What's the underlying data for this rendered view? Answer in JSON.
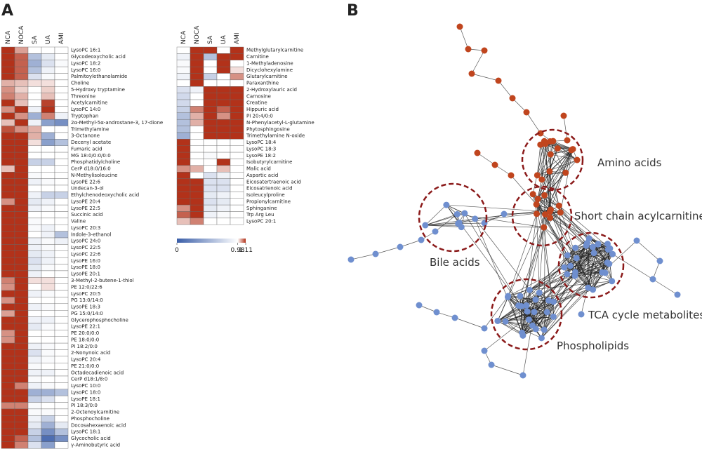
{
  "panel_labels": [
    "A",
    "B"
  ],
  "colorbar": {
    "lim": [
      0,
      1.11
    ],
    "ticks": [
      0,
      0.98,
      1.11
    ],
    "colors": [
      "#3a5ea8",
      "#ffffff",
      "#b2321a"
    ]
  },
  "chart_data": [
    {
      "type": "heatmap",
      "x": [
        "NCA",
        "NOCA",
        "SA",
        "UA",
        "AMI"
      ],
      "y": [
        "LysoPC 16:1",
        "Glycodeoxycholic acid",
        "LysoPC 18:2",
        "LysoPC 16:0",
        "Palmitoylethanolamide",
        "Choline",
        "5-Hydroxy tryptamine",
        "Threonine",
        "Acetylcarnitine",
        "LysoPC 14:0",
        "Tryptophan",
        "2α-Methyl-5α-androstane-3, 17-dione",
        "Trimethylamine",
        "3-Octanone",
        "Decenyl acetate",
        "Fumaric acid",
        "MG 18:0/0:0/0:0",
        "Phosphatidylcholine",
        "CerP d18:0/16:0",
        "N-Methylisoleucine",
        "LysoPE 22:6",
        "Undecan-3-ol",
        "Ethylchenodeoxycholic acid",
        "LysoPE 20:4",
        "LysoPE 22:5",
        "Succinic acid",
        "Valine",
        "LysoPC 20:3",
        "Indole-3-ethanol",
        "LysoPC 24:0",
        "LysoPC 22:5",
        "LysoPC 22:6",
        "LysoPE 16:0",
        "LysoPE 18:0",
        "LysoPE 20:1",
        "3-Methyl-2-butene-1-thiol",
        "PE 12:0/22:6",
        "LysoPC 20:5",
        "PG 13:0/14:0",
        "LysoPE 18:3",
        "PG 15:0/14:0",
        "Glycerophosphocholine",
        "LysoPE 22:1",
        "PE 20:0/0:0",
        "PE 18:0/0:0",
        "PI 18:2/0:0",
        "2-Nonynoic acid",
        "LysoPC 20:4",
        "PE 21:0/0:0",
        "Octadecadienoic acid",
        "CerP d18:1/8:0",
        "LysoPC 10:0",
        "LysoPC 18:0",
        "LysoPE 18:1",
        "PI 18:3/0:0",
        "2-Octenoylcarnitine",
        "Phosphocholine",
        "Docosahexaenoic acid",
        "LysoPC 18:1",
        "Glycocholic acid",
        "γ-Aminobutyric acid"
      ],
      "values": [
        [
          1.11,
          1.04,
          0.98,
          0.98,
          0.98
        ],
        [
          1.11,
          1.08,
          0.6,
          0.85,
          0.98
        ],
        [
          1.11,
          1.08,
          0.5,
          0.8,
          0.95
        ],
        [
          1.11,
          1.08,
          0.6,
          0.9,
          0.98
        ],
        [
          1.11,
          1.08,
          0.8,
          0.95,
          0.98
        ],
        [
          1.03,
          1.02,
          1.0,
          1.0,
          0.98
        ],
        [
          1.05,
          1.01,
          0.98,
          1.01,
          0.98
        ],
        [
          1.06,
          1.03,
          0.98,
          1.02,
          0.98
        ],
        [
          1.11,
          1.02,
          0.98,
          1.1,
          0.98
        ],
        [
          1.05,
          1.11,
          0.9,
          1.11,
          0.98
        ],
        [
          1.11,
          1.05,
          0.5,
          1.06,
          0.9
        ],
        [
          1.02,
          1.11,
          0.9,
          0.4,
          0.3
        ],
        [
          1.09,
          1.05,
          1.03,
          0.98,
          0.98
        ],
        [
          1.11,
          1.11,
          1.03,
          0.5,
          0.98
        ],
        [
          1.11,
          1.11,
          1.0,
          0.4,
          0.6
        ],
        [
          1.11,
          1.11,
          0.98,
          0.98,
          0.98
        ],
        [
          1.11,
          1.11,
          0.98,
          0.98,
          0.98
        ],
        [
          1.11,
          1.11,
          0.7,
          0.7,
          0.98
        ],
        [
          1.02,
          1.11,
          0.98,
          0.98,
          0.98
        ],
        [
          1.11,
          1.11,
          0.95,
          0.98,
          0.98
        ],
        [
          1.11,
          1.11,
          0.9,
          0.95,
          0.98
        ],
        [
          1.11,
          1.11,
          0.98,
          0.98,
          0.98
        ],
        [
          1.11,
          1.11,
          0.9,
          0.7,
          0.7
        ],
        [
          1.05,
          1.11,
          0.85,
          0.9,
          0.98
        ],
        [
          1.11,
          1.11,
          0.9,
          0.95,
          0.98
        ],
        [
          1.11,
          1.11,
          0.98,
          0.98,
          0.98
        ],
        [
          1.11,
          1.11,
          0.95,
          0.98,
          0.98
        ],
        [
          1.11,
          1.11,
          0.95,
          0.9,
          0.98
        ],
        [
          1.11,
          1.11,
          0.98,
          0.9,
          0.6
        ],
        [
          1.11,
          1.11,
          0.9,
          0.95,
          0.9
        ],
        [
          1.11,
          1.11,
          0.9,
          0.95,
          0.98
        ],
        [
          1.11,
          1.11,
          0.85,
          0.9,
          0.98
        ],
        [
          1.11,
          1.11,
          0.8,
          0.9,
          0.98
        ],
        [
          1.11,
          1.11,
          0.85,
          0.95,
          0.98
        ],
        [
          1.11,
          1.11,
          0.9,
          0.98,
          0.98
        ],
        [
          1.06,
          1.11,
          1.0,
          1.0,
          0.98
        ],
        [
          1.05,
          1.11,
          0.98,
          1.0,
          0.98
        ],
        [
          1.11,
          1.11,
          0.9,
          0.95,
          0.98
        ],
        [
          1.05,
          1.11,
          0.98,
          0.98,
          0.98
        ],
        [
          1.11,
          1.11,
          0.9,
          0.95,
          0.98
        ],
        [
          1.04,
          1.11,
          0.98,
          0.98,
          0.98
        ],
        [
          1.11,
          1.11,
          0.9,
          0.9,
          0.98
        ],
        [
          1.11,
          1.11,
          0.85,
          0.95,
          0.98
        ],
        [
          1.05,
          1.11,
          0.98,
          0.98,
          0.98
        ],
        [
          1.05,
          1.11,
          0.98,
          0.98,
          0.98
        ],
        [
          1.11,
          1.11,
          0.9,
          0.95,
          0.98
        ],
        [
          1.11,
          1.11,
          0.8,
          0.95,
          0.98
        ],
        [
          1.11,
          1.11,
          0.9,
          0.95,
          0.98
        ],
        [
          1.11,
          1.11,
          0.95,
          0.98,
          0.98
        ],
        [
          1.11,
          1.11,
          0.9,
          0.9,
          0.98
        ],
        [
          1.11,
          1.11,
          0.95,
          0.98,
          0.98
        ],
        [
          1.11,
          1.06,
          0.9,
          0.95,
          0.98
        ],
        [
          1.11,
          1.11,
          0.5,
          0.5,
          0.6
        ],
        [
          1.11,
          1.11,
          0.7,
          0.8,
          0.98
        ],
        [
          1.06,
          1.06,
          0.95,
          0.98,
          0.98
        ],
        [
          1.11,
          1.11,
          0.95,
          0.95,
          0.98
        ],
        [
          1.11,
          1.11,
          0.9,
          0.7,
          0.98
        ],
        [
          1.11,
          1.11,
          0.85,
          0.5,
          0.85
        ],
        [
          1.11,
          1.11,
          0.7,
          0.3,
          0.6
        ],
        [
          1.11,
          1.08,
          0.6,
          0.1,
          0.3
        ],
        [
          1.11,
          1.06,
          0.8,
          0.4,
          0.98
        ]
      ]
    },
    {
      "type": "heatmap",
      "x": [
        "NCA",
        "NOCA",
        "SA",
        "UA",
        "AMI"
      ],
      "y": [
        "Methylglutarylcarnitine",
        "Carnitine",
        "1-Methyladenosine",
        "Dicyclohexylamine",
        "Glutarylcarnitine",
        "Paraxanthine",
        "2-Hydroxylauric acid",
        "Carnosine",
        "Creatine",
        "Hippuric acid",
        "PI 20:4/0:0",
        "N-Phenylacetyl-L-glutamine",
        "Phytosphingosine",
        "Trimethylamine N-oxide",
        "LysoPC 18:4",
        "LysoPC 18:3",
        "LysoPE 18:2",
        "Isobutyrylcarnitine",
        "Malic acid",
        "Aspartic acid",
        "Eicosatertraenoic acid",
        "Eicosatrienoic acid",
        "Isoleucylproline",
        "Propionylcarnitine",
        "Sphinganine",
        "Trp Arg Leu",
        "LysoPC 20:1"
      ],
      "values": [
        [
          0.98,
          1.11,
          1.11,
          0.98,
          1.11
        ],
        [
          0.9,
          1.11,
          0.6,
          1.11,
          1.11
        ],
        [
          0.95,
          1.11,
          0.98,
          1.11,
          0.98
        ],
        [
          0.95,
          1.11,
          0.98,
          1.11,
          1.0
        ],
        [
          0.9,
          1.11,
          0.7,
          0.98,
          1.05
        ],
        [
          0.98,
          1.11,
          0.98,
          0.98,
          0.98
        ],
        [
          0.8,
          0.9,
          1.11,
          1.11,
          1.11
        ],
        [
          0.75,
          0.98,
          1.11,
          1.11,
          1.11
        ],
        [
          0.75,
          0.98,
          1.11,
          1.11,
          1.11
        ],
        [
          0.7,
          1.06,
          1.11,
          1.08,
          1.11
        ],
        [
          0.6,
          1.03,
          1.11,
          1.05,
          1.11
        ],
        [
          0.6,
          1.03,
          1.11,
          1.11,
          1.11
        ],
        [
          0.6,
          0.98,
          1.11,
          1.11,
          1.11
        ],
        [
          0.5,
          0.98,
          1.11,
          1.11,
          1.11
        ],
        [
          1.11,
          0.98,
          0.98,
          0.98,
          0.98
        ],
        [
          1.11,
          0.98,
          0.98,
          0.98,
          0.98
        ],
        [
          1.11,
          0.98,
          0.95,
          0.98,
          0.98
        ],
        [
          1.11,
          0.98,
          0.98,
          1.11,
          0.98
        ],
        [
          1.05,
          1.03,
          0.98,
          1.02,
          0.98
        ],
        [
          1.11,
          0.98,
          0.8,
          0.9,
          0.98
        ],
        [
          1.11,
          1.11,
          0.8,
          0.8,
          0.98
        ],
        [
          1.11,
          1.11,
          0.8,
          0.8,
          0.98
        ],
        [
          1.11,
          1.11,
          0.85,
          0.9,
          0.98
        ],
        [
          1.11,
          1.11,
          0.8,
          0.85,
          0.98
        ],
        [
          1.05,
          1.11,
          0.85,
          0.9,
          0.98
        ],
        [
          1.08,
          1.11,
          0.9,
          0.95,
          0.98
        ],
        [
          1.02,
          1.06,
          0.98,
          0.98,
          0.98
        ]
      ]
    }
  ],
  "network": {
    "clusters": [
      {
        "label": "Amino acids"
      },
      {
        "label": "Short chain acylcarnitines"
      },
      {
        "label": "Bile acids"
      },
      {
        "label": "TCA cycle metabolites"
      },
      {
        "label": "Phospholipids"
      }
    ]
  }
}
